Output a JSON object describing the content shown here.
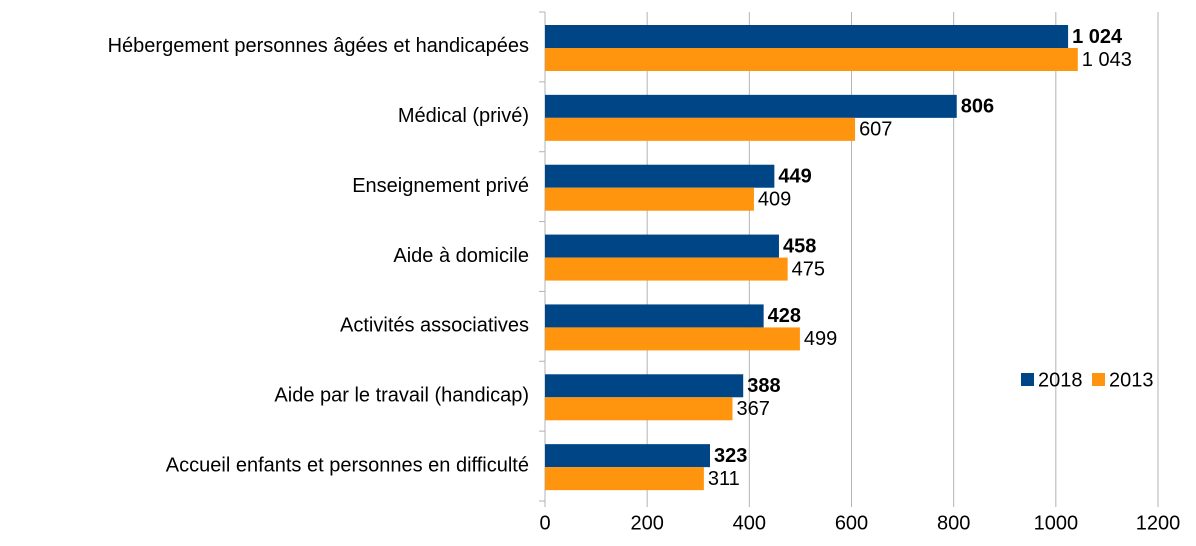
{
  "chart_data": {
    "type": "hbar",
    "categories": [
      "Hébergement personnes âgées et handicapées",
      "Médical (privé)",
      "Enseignement privé",
      "Aide à domicile",
      "Activités associatives",
      "Aide par le travail (handicap)",
      "Accueil enfants et personnes en difficulté"
    ],
    "series": [
      {
        "name": "2018",
        "color": "#004586",
        "values": [
          1024,
          806,
          449,
          458,
          428,
          388,
          323
        ],
        "value_labels": [
          "1 024",
          "806",
          "449",
          "458",
          "428",
          "388",
          "323"
        ]
      },
      {
        "name": "2013",
        "color": "#ff950e",
        "values": [
          1043,
          607,
          409,
          475,
          499,
          367,
          311
        ],
        "value_labels": [
          "1 043",
          "607",
          "409",
          "475",
          "499",
          "367",
          "311"
        ]
      }
    ],
    "xlim": [
      0,
      1200
    ],
    "xticks": [
      0,
      200,
      400,
      600,
      800,
      1000,
      1200
    ],
    "grid": true,
    "legend": "right"
  }
}
